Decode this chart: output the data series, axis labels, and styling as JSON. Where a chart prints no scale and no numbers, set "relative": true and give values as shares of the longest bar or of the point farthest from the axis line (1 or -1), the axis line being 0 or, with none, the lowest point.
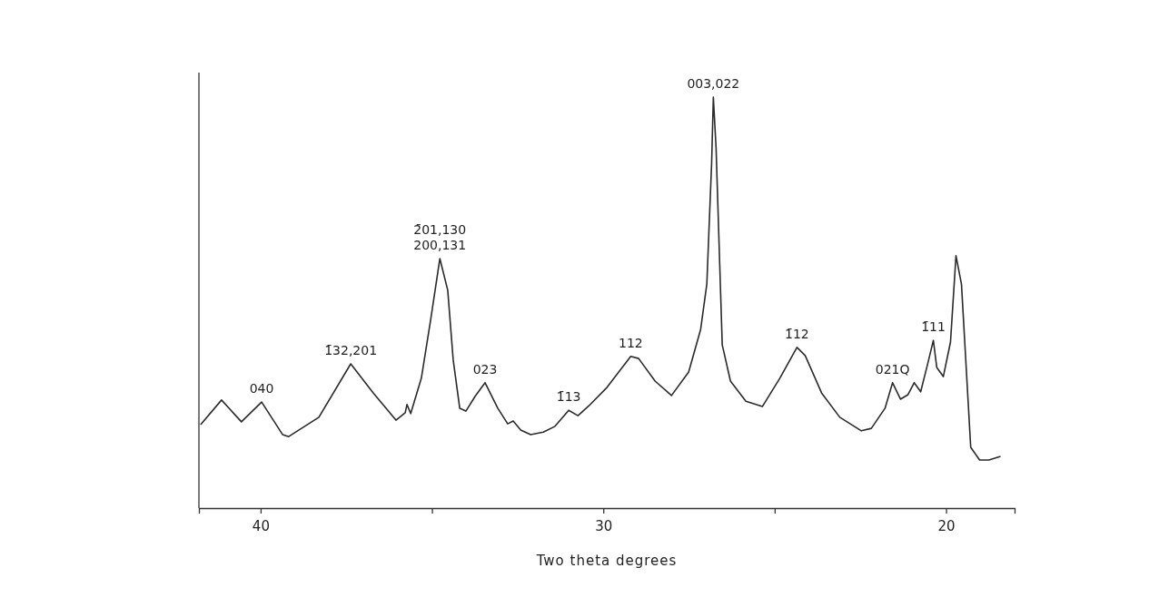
{
  "chart_data": {
    "type": "line",
    "xlabel": "Two theta degrees",
    "relative": true,
    "xlim": [
      41.8,
      18.0
    ],
    "xticks": [
      40,
      {
        "value": 35,
        "label": null
      },
      30,
      {
        "value": 25,
        "label": null
      },
      20
    ],
    "marker": "none",
    "line_style": "solid",
    "grid": false,
    "series": [
      {
        "color": "#2a2a2a",
        "x": [
          41.75,
          41.14,
          40.56,
          39.97,
          39.36,
          39.18,
          38.3,
          37.37,
          36.71,
          36.05,
          35.78,
          35.73,
          35.62,
          35.31,
          35.04,
          34.77,
          34.54,
          34.38,
          34.19,
          34.01,
          33.74,
          33.45,
          33.08,
          32.79,
          32.63,
          32.41,
          32.12,
          31.75,
          31.41,
          31.01,
          30.74,
          30.42,
          29.89,
          29.2,
          28.97,
          28.49,
          28.01,
          27.51,
          27.16,
          26.98,
          26.84,
          26.79,
          26.71,
          26.53,
          26.29,
          25.84,
          25.36,
          24.85,
          24.35,
          24.11,
          23.63,
          23.1,
          22.47,
          22.18,
          21.78,
          21.56,
          21.33,
          21.11,
          20.93,
          20.74,
          20.53,
          20.37,
          20.27,
          20.08,
          19.87,
          19.71,
          19.55,
          19.28,
          19.02,
          18.75,
          18.41
        ],
        "values": [
          0.203,
          0.263,
          0.21,
          0.258,
          0.179,
          0.174,
          0.221,
          0.351,
          0.28,
          0.214,
          0.232,
          0.252,
          0.23,
          0.316,
          0.457,
          0.607,
          0.53,
          0.36,
          0.243,
          0.236,
          0.272,
          0.305,
          0.243,
          0.205,
          0.212,
          0.19,
          0.179,
          0.185,
          0.199,
          0.238,
          0.225,
          0.249,
          0.294,
          0.369,
          0.364,
          0.309,
          0.274,
          0.331,
          0.435,
          0.545,
          0.839,
          1,
          0.876,
          0.397,
          0.309,
          0.26,
          0.247,
          0.316,
          0.391,
          0.371,
          0.28,
          0.221,
          0.188,
          0.194,
          0.243,
          0.305,
          0.265,
          0.276,
          0.305,
          0.283,
          0.353,
          0.408,
          0.342,
          0.32,
          0.404,
          0.614,
          0.545,
          0.148,
          0.117,
          0.117,
          0.126
        ]
      }
    ],
    "annotations": [
      {
        "text": "040",
        "x": 39.97,
        "y": 0.258
      },
      {
        "text": "1̄32,201",
        "x": 37.37,
        "y": 0.351
      },
      {
        "text": "200,131",
        "x": 34.77,
        "y": 0.607
      },
      {
        "text": "2̄01,130",
        "x": 34.77,
        "y": 0.607
      },
      {
        "text": "023",
        "x": 33.45,
        "y": 0.305
      },
      {
        "text": "1̄13",
        "x": 31.01,
        "y": 0.238
      },
      {
        "text": "112",
        "x": 29.2,
        "y": 0.369
      },
      {
        "text": "003,022",
        "x": 26.79,
        "y": 1
      },
      {
        "text": "1̄12",
        "x": 24.35,
        "y": 0.391
      },
      {
        "text": "021Q",
        "x": 21.56,
        "y": 0.305
      },
      {
        "text": "1̄11",
        "x": 20.37,
        "y": 0.408
      }
    ]
  }
}
